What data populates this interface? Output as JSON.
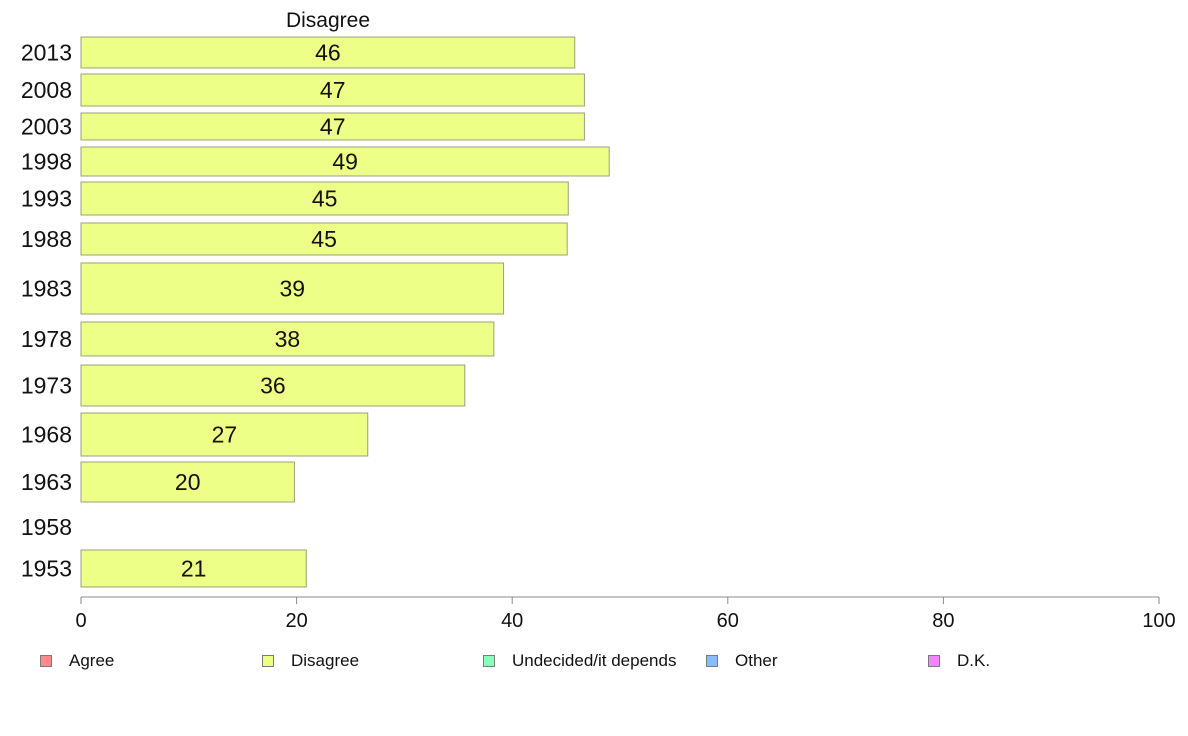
{
  "chart_data": {
    "type": "bar",
    "orientation": "horizontal",
    "title": "Disagree",
    "categories": [
      "2013",
      "2008",
      "2003",
      "1998",
      "1993",
      "1988",
      "1983",
      "1978",
      "1973",
      "1968",
      "1963",
      "1958",
      "1953"
    ],
    "series": [
      {
        "name": "Disagree",
        "color": "#eeff88",
        "values": [
          46,
          47,
          47,
          49,
          45,
          45,
          39,
          38,
          36,
          27,
          20,
          null,
          21
        ],
        "plotted_values": [
          45.8,
          46.7,
          46.7,
          49.0,
          45.2,
          45.1,
          39.2,
          38.3,
          35.6,
          26.6,
          19.8,
          null,
          20.9
        ]
      }
    ],
    "xlim": [
      0,
      100
    ],
    "xticks": [
      "0",
      "20",
      "40",
      "60",
      "80",
      "100"
    ],
    "legend_position": "bottom",
    "legend": [
      {
        "label": "Agree",
        "color": "#ff8a8a"
      },
      {
        "label": "Disagree",
        "color": "#eeff88"
      },
      {
        "label": "Undecided/it depends",
        "color": "#88ffbb"
      },
      {
        "label": "Other",
        "color": "#88bbff"
      },
      {
        "label": "D.K.",
        "color": "#ee88ff"
      }
    ]
  }
}
